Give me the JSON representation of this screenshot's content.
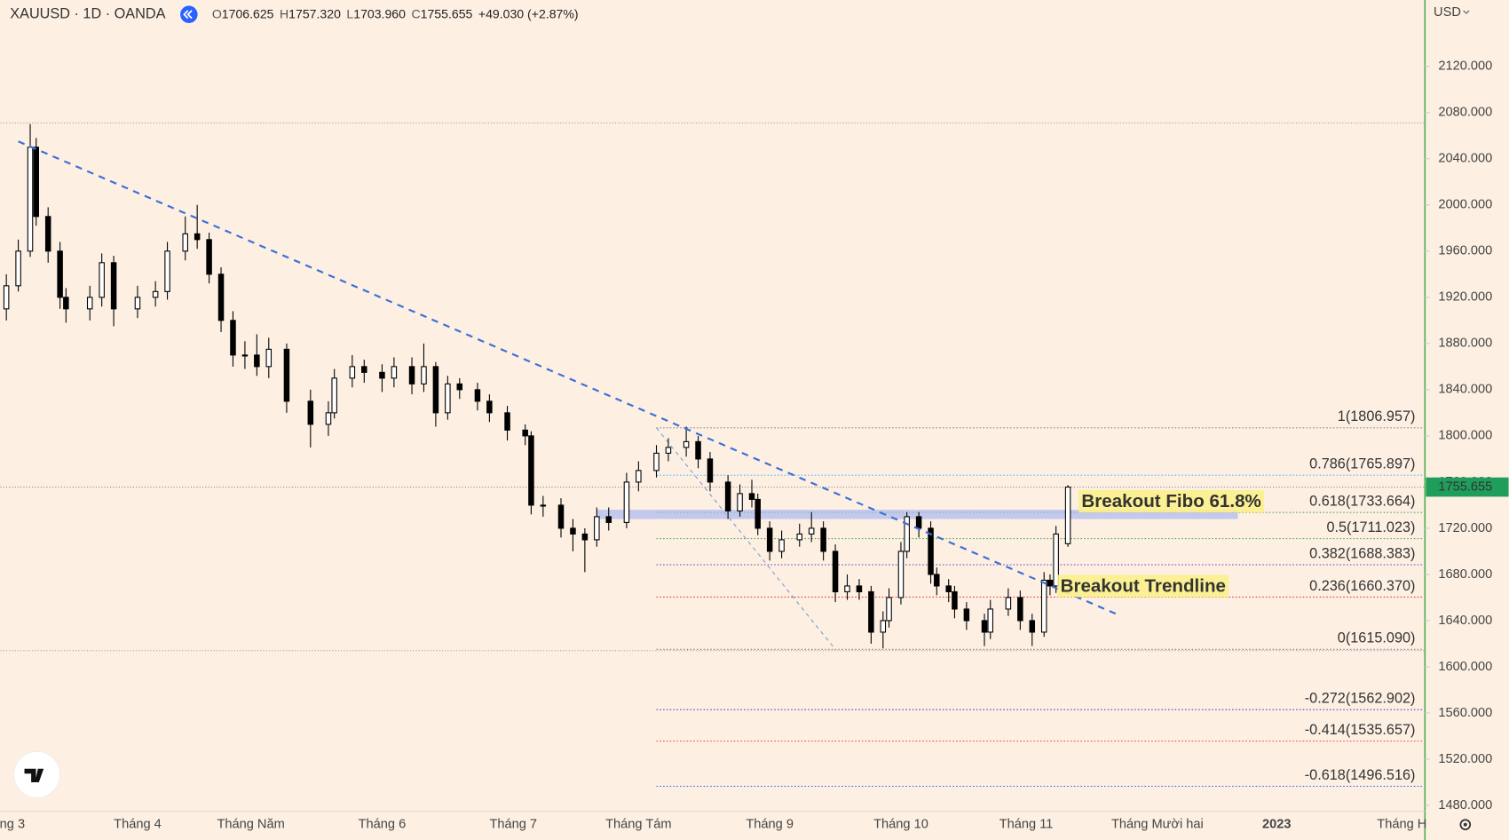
{
  "chart_data": {
    "type": "candlestick",
    "legend": {
      "symbol": "XAUUSD · 1D · OANDA",
      "items": [
        {
          "key": "O",
          "value": "1706.625"
        },
        {
          "key": "H",
          "value": "1757.320"
        },
        {
          "key": "L",
          "value": "1703.960"
        },
        {
          "key": "C",
          "value": "1755.655"
        }
      ],
      "change": "+49.030 (+2.87%)"
    },
    "currency": "USD",
    "x": [
      1,
      3,
      5,
      6,
      8,
      10,
      11,
      15,
      17,
      19,
      23,
      26,
      28,
      31,
      33,
      35,
      37,
      39,
      41,
      43,
      45,
      48,
      52,
      55,
      56,
      59,
      61,
      64,
      66,
      69,
      71,
      73,
      75,
      77,
      80,
      82,
      85,
      88,
      89,
      91,
      94,
      96,
      98,
      100,
      102,
      105,
      107,
      110,
      112,
      115,
      117,
      119,
      122,
      124,
      126,
      127,
      129,
      131,
      134,
      136,
      138,
      140,
      142,
      144,
      146,
      148,
      149,
      151,
      152,
      154,
      156,
      157,
      159,
      160,
      162,
      165,
      166,
      169,
      171,
      173,
      175,
      176,
      177,
      179
    ],
    "ohlc": [
      [
        1910,
        1940,
        1900,
        1930
      ],
      [
        1930,
        1970,
        1925,
        1960
      ],
      [
        1960,
        2070,
        1955,
        2050
      ],
      [
        2050,
        2058,
        1982,
        1990
      ],
      [
        1990,
        1998,
        1950,
        1960
      ],
      [
        1960,
        1968,
        1910,
        1920
      ],
      [
        1920,
        1928,
        1898,
        1910
      ],
      [
        1910,
        1930,
        1900,
        1920
      ],
      [
        1920,
        1958,
        1912,
        1950
      ],
      [
        1950,
        1956,
        1895,
        1910
      ],
      [
        1910,
        1930,
        1902,
        1920
      ],
      [
        1920,
        1934,
        1912,
        1925
      ],
      [
        1925,
        1968,
        1918,
        1960
      ],
      [
        1960,
        1990,
        1952,
        1975
      ],
      [
        1975,
        2000,
        1962,
        1970
      ],
      [
        1970,
        1976,
        1932,
        1940
      ],
      [
        1940,
        1946,
        1890,
        1900
      ],
      [
        1900,
        1908,
        1860,
        1870
      ],
      [
        1870,
        1882,
        1858,
        1870
      ],
      [
        1870,
        1888,
        1852,
        1860
      ],
      [
        1860,
        1885,
        1850,
        1875
      ],
      [
        1875,
        1880,
        1820,
        1830
      ],
      [
        1830,
        1840,
        1790,
        1810
      ],
      [
        1810,
        1830,
        1800,
        1820
      ],
      [
        1820,
        1858,
        1815,
        1850
      ],
      [
        1850,
        1870,
        1842,
        1860
      ],
      [
        1860,
        1866,
        1846,
        1855
      ],
      [
        1855,
        1862,
        1838,
        1850
      ],
      [
        1850,
        1868,
        1842,
        1860
      ],
      [
        1860,
        1868,
        1836,
        1845
      ],
      [
        1845,
        1880,
        1838,
        1860
      ],
      [
        1860,
        1864,
        1808,
        1820
      ],
      [
        1820,
        1852,
        1814,
        1845
      ],
      [
        1845,
        1850,
        1832,
        1840
      ],
      [
        1840,
        1846,
        1822,
        1830
      ],
      [
        1830,
        1836,
        1812,
        1820
      ],
      [
        1820,
        1826,
        1796,
        1805
      ],
      [
        1805,
        1810,
        1792,
        1800
      ],
      [
        1800,
        1804,
        1732,
        1740
      ],
      [
        1740,
        1748,
        1730,
        1740
      ],
      [
        1740,
        1746,
        1712,
        1720
      ],
      [
        1720,
        1728,
        1700,
        1715
      ],
      [
        1715,
        1720,
        1682,
        1710
      ],
      [
        1710,
        1738,
        1704,
        1730
      ],
      [
        1730,
        1738,
        1718,
        1725
      ],
      [
        1725,
        1768,
        1720,
        1760
      ],
      [
        1760,
        1778,
        1752,
        1770
      ],
      [
        1770,
        1792,
        1764,
        1785
      ],
      [
        1785,
        1798,
        1778,
        1790
      ],
      [
        1790,
        1808,
        1782,
        1795
      ],
      [
        1795,
        1800,
        1772,
        1780
      ],
      [
        1780,
        1786,
        1752,
        1760
      ],
      [
        1760,
        1766,
        1728,
        1735
      ],
      [
        1735,
        1758,
        1730,
        1750
      ],
      [
        1750,
        1762,
        1738,
        1745
      ],
      [
        1745,
        1750,
        1714,
        1720
      ],
      [
        1720,
        1726,
        1692,
        1700
      ],
      [
        1700,
        1718,
        1694,
        1710
      ],
      [
        1710,
        1724,
        1704,
        1715
      ],
      [
        1715,
        1734,
        1708,
        1720
      ],
      [
        1720,
        1726,
        1692,
        1700
      ],
      [
        1700,
        1706,
        1656,
        1665
      ],
      [
        1665,
        1680,
        1658,
        1670
      ],
      [
        1670,
        1676,
        1658,
        1665
      ],
      [
        1665,
        1670,
        1620,
        1630
      ],
      [
        1630,
        1648,
        1616,
        1640
      ],
      [
        1640,
        1668,
        1634,
        1660
      ],
      [
        1660,
        1708,
        1654,
        1700
      ],
      [
        1700,
        1734,
        1694,
        1730
      ],
      [
        1730,
        1734,
        1712,
        1720
      ],
      [
        1720,
        1726,
        1672,
        1680
      ],
      [
        1680,
        1686,
        1662,
        1670
      ],
      [
        1670,
        1676,
        1656,
        1665
      ],
      [
        1665,
        1670,
        1642,
        1650
      ],
      [
        1650,
        1656,
        1632,
        1640
      ],
      [
        1640,
        1646,
        1618,
        1630
      ],
      [
        1630,
        1658,
        1624,
        1650
      ],
      [
        1650,
        1668,
        1644,
        1660
      ],
      [
        1660,
        1666,
        1632,
        1640
      ],
      [
        1640,
        1646,
        1618,
        1630
      ],
      [
        1630,
        1682,
        1626,
        1675
      ],
      [
        1675,
        1680,
        1662,
        1670
      ],
      [
        1670,
        1722,
        1664,
        1715
      ],
      [
        1706.625,
        1757.32,
        1703.96,
        1755.655
      ]
    ],
    "up_color": "#ffffff",
    "down_color": "#000000",
    "xlim": [
      0,
      238.7
    ],
    "xticks": [
      {
        "value": 2,
        "label": "ng 3"
      },
      {
        "value": 23,
        "label": "Tháng 4"
      },
      {
        "value": 42,
        "label": "Tháng Năm"
      },
      {
        "value": 64,
        "label": "Tháng 6"
      },
      {
        "value": 86,
        "label": "Tháng 7"
      },
      {
        "value": 107,
        "label": "Tháng Tám"
      },
      {
        "value": 129,
        "label": "Tháng 9"
      },
      {
        "value": 151,
        "label": "Tháng 10"
      },
      {
        "value": 172,
        "label": "Tháng 11"
      },
      {
        "value": 194,
        "label": "Tháng Mười hai"
      },
      {
        "value": 214,
        "label": "2023"
      },
      {
        "value": 235,
        "label": "Tháng H"
      }
    ],
    "ylim": [
      1475,
      2177.5
    ],
    "yticks": [
      {
        "value": 1480,
        "label": "1480.000"
      },
      {
        "value": 1520,
        "label": "1520.000"
      },
      {
        "value": 1560,
        "label": "1560.000"
      },
      {
        "value": 1600,
        "label": "1600.000"
      },
      {
        "value": 1640,
        "label": "1640.000"
      },
      {
        "value": 1680,
        "label": "1680.000"
      },
      {
        "value": 1720,
        "label": "1720.000"
      },
      {
        "value": 1760,
        "label": "1760.000"
      },
      {
        "value": 1800,
        "label": "1800.000"
      },
      {
        "value": 1840,
        "label": "1840.000"
      },
      {
        "value": 1880,
        "label": "1880.000"
      },
      {
        "value": 1920,
        "label": "1920.000"
      },
      {
        "value": 1960,
        "label": "1960.000"
      },
      {
        "value": 2000,
        "label": "2000.000"
      },
      {
        "value": 2040,
        "label": "2040.000"
      },
      {
        "value": 2080,
        "label": "2080.000"
      },
      {
        "value": 2120,
        "label": "2120.000"
      }
    ],
    "grid": true,
    "last_price": 1755.655,
    "price_lines": [
      2071,
      1614
    ],
    "trendline": {
      "x": [
        3,
        187
      ],
      "values": [
        2055,
        1646
      ],
      "color": "#3d6fd6"
    },
    "fib_anchor_x": [
      110,
      140
    ],
    "fib_levels": [
      {
        "label": "1(1806.957)",
        "value": 1806.957,
        "color": "#8a8a8a"
      },
      {
        "label": "0.786(1765.897)",
        "value": 1765.897,
        "color": "#64b5f6"
      },
      {
        "label": "0.618(1733.664)",
        "value": 1733.664,
        "color": "#3f9a45"
      },
      {
        "label": "0.5(1711.023)",
        "value": 1711.023,
        "color": "#5cab4e"
      },
      {
        "label": "0.382(1688.383)",
        "value": 1688.383,
        "color": "#6a3fb5"
      },
      {
        "label": "0.236(1660.370)",
        "value": 1660.37,
        "color": "#e0413a"
      },
      {
        "label": "0(1615.090)",
        "value": 1615.09,
        "color": "#8a8a8a"
      },
      {
        "label": "-0.272(1562.902)",
        "value": 1562.902,
        "color": "#6a3fb5"
      },
      {
        "label": "-0.414(1535.657)",
        "value": 1535.657,
        "color": "#e0413a"
      },
      {
        "label": "-0.618(1496.516)",
        "value": 1496.516,
        "color": "#2962ff"
      }
    ],
    "highlight_zone": {
      "x": [
        100,
        207.5
      ],
      "values": [
        1736,
        1728
      ]
    },
    "annotations": [
      "Breakout Fibo 61.8%",
      "Breakout Trendline"
    ]
  }
}
